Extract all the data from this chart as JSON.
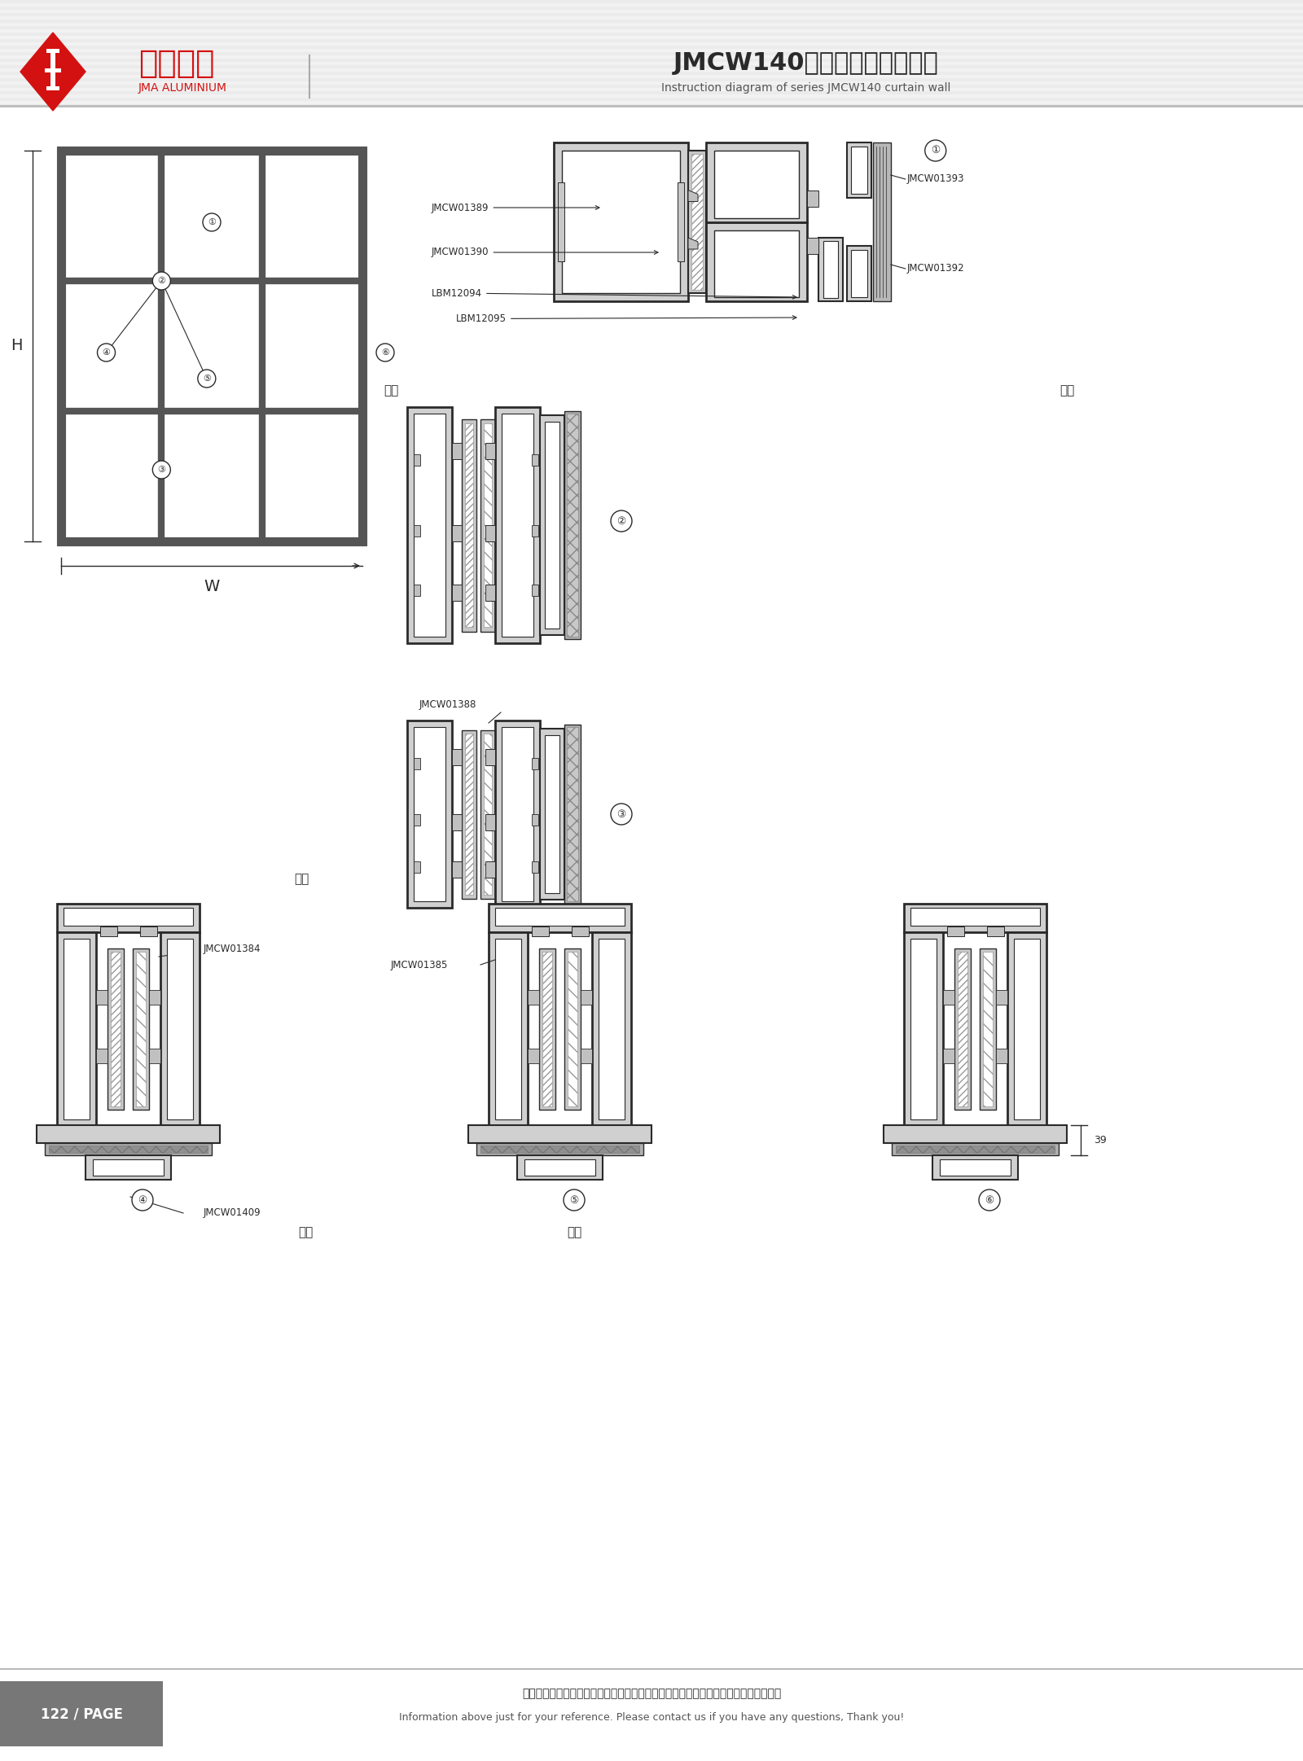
{
  "title_cn": "JMCW140系列隔热幕墙结构图",
  "title_en": "Instruction diagram of series JMCW140 curtain wall",
  "company_cn": "坚美铝业",
  "company_en": "JMA ALUMINIUM",
  "page": "122 / PAGE",
  "footer_cn": "图中所示型材截面、装配、编号、尺寸及重量仅供参考。如有疑问，请向本公司查询。",
  "footer_en": "Information above just for your reference. Please contact us if you have any questions, Thank you!",
  "bg_color": "#f5f5f5",
  "white_color": "#ffffff",
  "dark_color": "#2a2a2a",
  "gray_profile": "#808080",
  "mid_gray": "#999999",
  "light_gray": "#cccccc",
  "red_color": "#d41111",
  "stripe_color": "#e8e8e8",
  "header_line": "#cccccc"
}
